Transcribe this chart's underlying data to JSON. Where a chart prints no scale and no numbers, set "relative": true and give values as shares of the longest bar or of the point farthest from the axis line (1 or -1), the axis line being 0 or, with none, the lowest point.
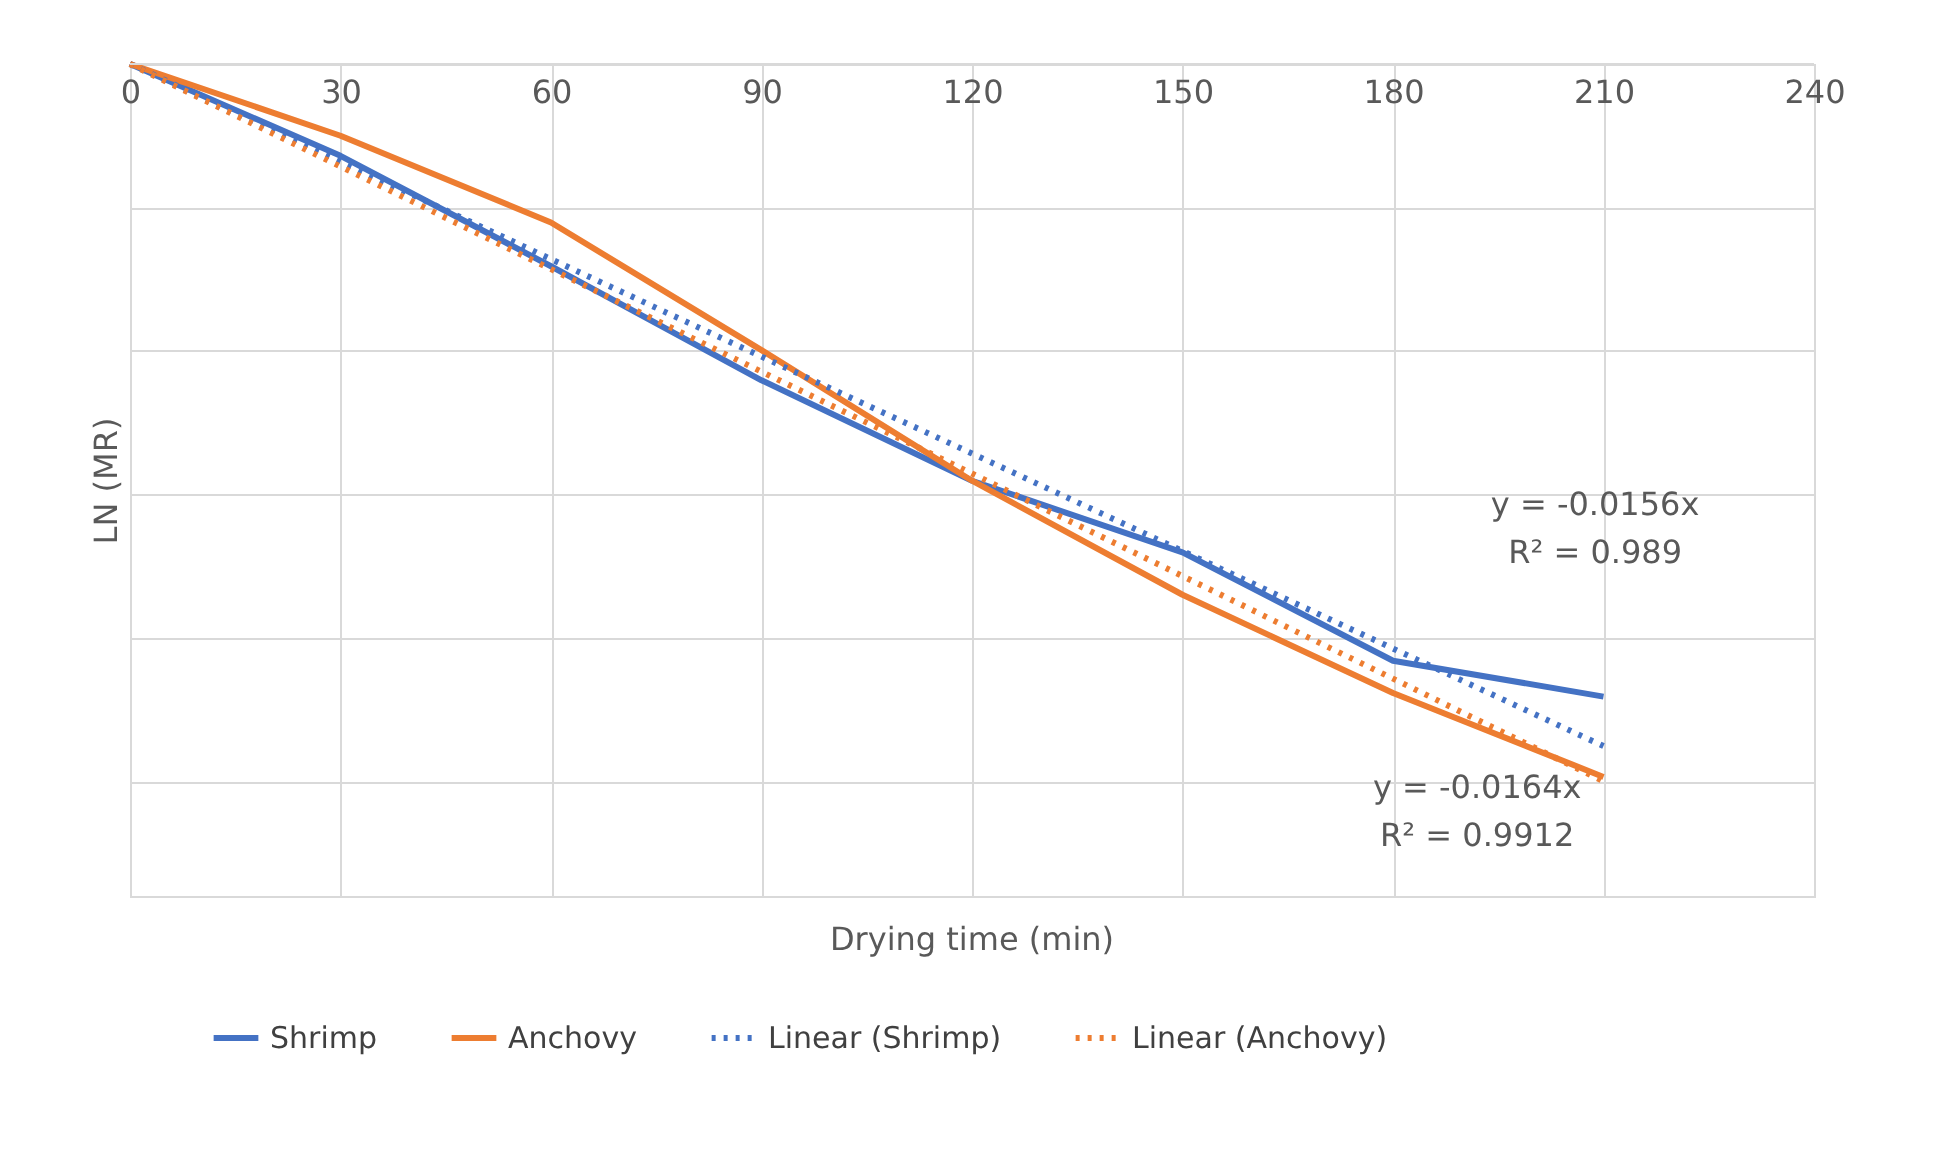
{
  "chart_data": {
    "type": "line",
    "xlabel": "Drying time (min)",
    "ylabel": "LN (MR)",
    "relative": true,
    "x": [
      0,
      30,
      60,
      90,
      120,
      150,
      180,
      210
    ],
    "xlim": [
      0,
      240
    ],
    "xticks": [
      0,
      30,
      60,
      90,
      120,
      150,
      180,
      210,
      240
    ],
    "series": [
      {
        "name": "Shrimp",
        "color": "#4472c4",
        "line_style": "solid",
        "values": [
          0,
          -0.128,
          -0.282,
          -0.441,
          -0.581,
          -0.681,
          -0.832,
          -0.882
        ]
      },
      {
        "name": "Anchovy",
        "color": "#ed7d31",
        "line_style": "solid",
        "values": [
          0,
          -0.1,
          -0.221,
          -0.399,
          -0.581,
          -0.74,
          -0.877,
          -0.994
        ]
      },
      {
        "name": "Linear (Shrimp)",
        "color": "#4472c4",
        "line_style": "dotted",
        "values": [
          0,
          -0.136,
          -0.272,
          -0.408,
          -0.543,
          -0.679,
          -0.815,
          -0.951
        ]
      },
      {
        "name": "Linear (Anchovy)",
        "color": "#ed7d31",
        "line_style": "dotted",
        "values": [
          0,
          -0.143,
          -0.286,
          -0.429,
          -0.571,
          -0.714,
          -0.857,
          -1
        ]
      }
    ],
    "annotations": [
      "y = -0.0156x\nR² = 0.989",
      "y = -0.0164x\nR² = 0.9912"
    ],
    "grid": true,
    "legend": "bottom",
    "marker": "none"
  }
}
